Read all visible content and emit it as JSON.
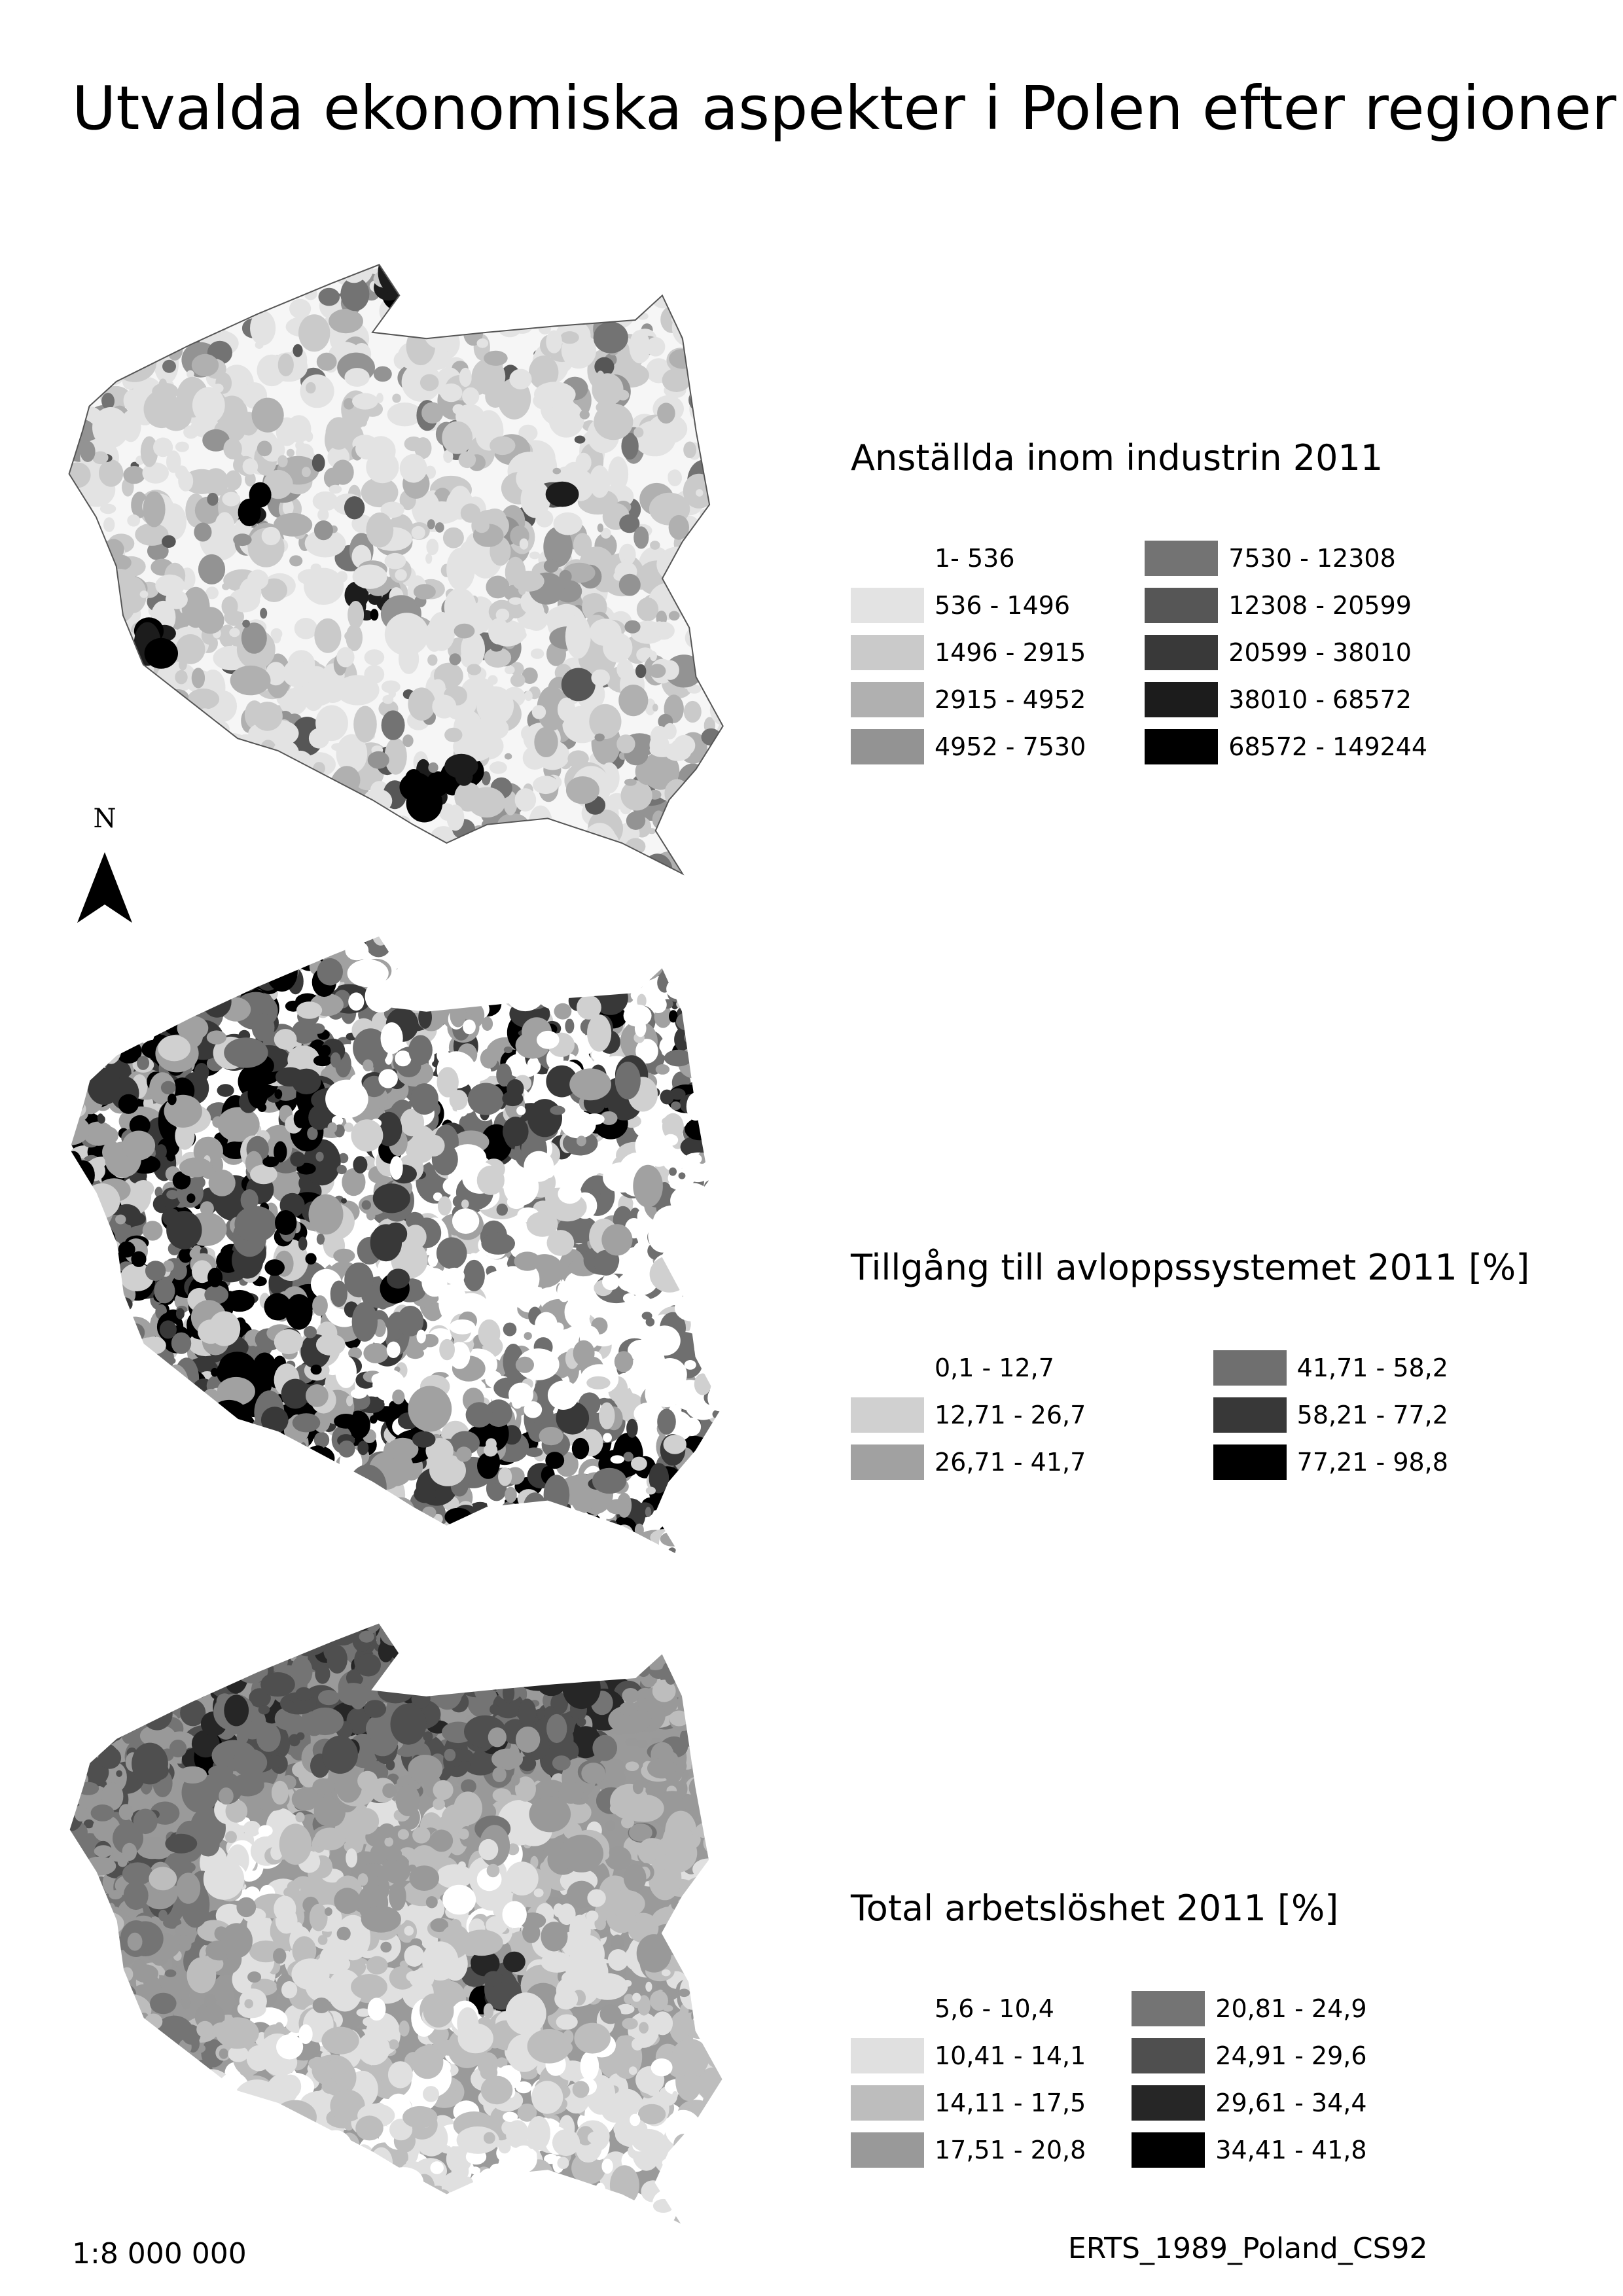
{
  "title": "Utvalda ekonomiska aspekter i Polen efter regioner",
  "north_label": "N",
  "scale": "1:8 000 000",
  "crs": "ERTS_1989_Poland_CS92",
  "colors": {
    "c0": "#ffffff",
    "c1": "#e3e3e3",
    "c2": "#cacaca",
    "c3": "#b0b0b0",
    "c4": "#939393",
    "c5": "#737373",
    "c6": "#565656",
    "c7": "#393939",
    "c8": "#1c1c1c",
    "c9": "#000000"
  },
  "maps": [
    {
      "name": "Anställda inom industrin 2011",
      "legend": [
        {
          "label": "1- 536",
          "color": "#ffffff"
        },
        {
          "label": "536 - 1496",
          "color": "#e3e3e3"
        },
        {
          "label": "1496 - 2915",
          "color": "#cacaca"
        },
        {
          "label": "2915 - 4952",
          "color": "#b0b0b0"
        },
        {
          "label": "4952 - 7530",
          "color": "#939393"
        },
        {
          "label": "7530 - 12308",
          "color": "#737373"
        },
        {
          "label": "12308 - 20599",
          "color": "#565656"
        },
        {
          "label": "20599 - 38010",
          "color": "#393939"
        },
        {
          "label": "38010 - 68572",
          "color": "#1c1c1c"
        },
        {
          "label": "68572 - 149244",
          "color": "#000000"
        }
      ]
    },
    {
      "name": "Tillgång till avloppssystemet 2011 [%]",
      "legend": [
        {
          "label": "0,1 - 12,7",
          "color": "#ffffff"
        },
        {
          "label": "12,71 - 26,7",
          "color": "#d0d0d0"
        },
        {
          "label": "26,71 - 41,7",
          "color": "#a1a1a1"
        },
        {
          "label": "41,71 - 58,2",
          "color": "#6f6f6f"
        },
        {
          "label": "58,21 - 77,2",
          "color": "#383838"
        },
        {
          "label": "77,21 - 98,8",
          "color": "#000000"
        }
      ]
    },
    {
      "name": "Total arbetslöshet 2011 [%]",
      "legend": [
        {
          "label": "5,6 - 10,4",
          "color": "#ffffff"
        },
        {
          "label": "10,41 - 14,1",
          "color": "#e0e0e0"
        },
        {
          "label": "14,11 - 17,5",
          "color": "#bdbdbd"
        },
        {
          "label": "17,51 - 20,8",
          "color": "#999999"
        },
        {
          "label": "20,81 - 24,9",
          "color": "#747474"
        },
        {
          "label": "24,91 - 29,6",
          "color": "#4f4f4f"
        },
        {
          "label": "29,61 - 34,4",
          "color": "#262626"
        },
        {
          "label": "34,41 - 41,8",
          "color": "#000000"
        }
      ]
    }
  ]
}
